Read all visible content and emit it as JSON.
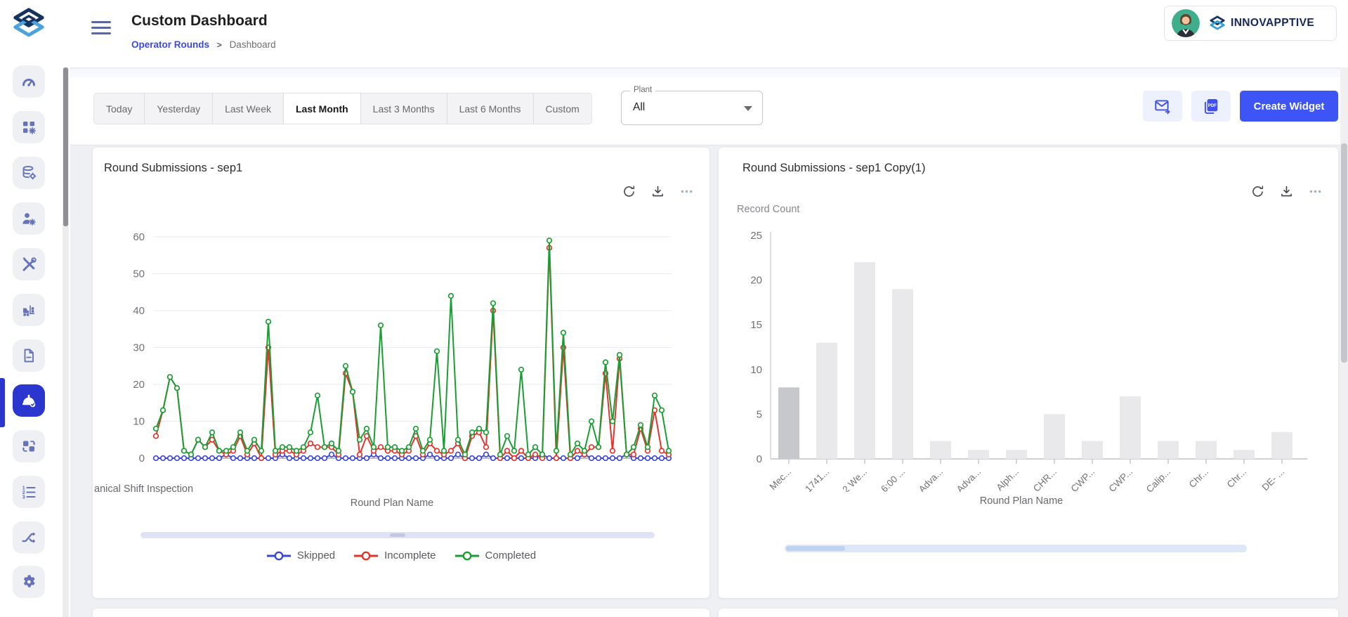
{
  "header": {
    "title": "Custom Dashboard",
    "breadcrumb": {
      "parent": "Operator Rounds",
      "separator": ">",
      "current": "Dashboard"
    },
    "brand": "INNOVAPPTIVE"
  },
  "sidebar": {
    "items": [
      {
        "name": "dashboard-gauge",
        "icon": "gauge",
        "active": false
      },
      {
        "name": "applications",
        "icon": "apps",
        "active": false
      },
      {
        "name": "data-settings",
        "icon": "database",
        "active": false
      },
      {
        "name": "user-management",
        "icon": "user",
        "active": false
      },
      {
        "name": "tools",
        "icon": "tools",
        "active": false
      },
      {
        "name": "logistics-forklift",
        "icon": "forklift",
        "active": false
      },
      {
        "name": "documents",
        "icon": "document",
        "active": false
      },
      {
        "name": "operator-rounds",
        "icon": "helmet",
        "active": true
      },
      {
        "name": "transfers",
        "icon": "swap",
        "active": false
      },
      {
        "name": "ordered-list",
        "icon": "list",
        "active": false
      },
      {
        "name": "workflows",
        "icon": "shuffle",
        "active": false
      },
      {
        "name": "settings",
        "icon": "gear",
        "active": false
      }
    ]
  },
  "filters": {
    "ranges": [
      "Today",
      "Yesterday",
      "Last Week",
      "Last Month",
      "Last 3 Months",
      "Last 6 Months",
      "Custom"
    ],
    "selected_range": "Last Month",
    "plant_label": "Plant",
    "plant_value": "All",
    "create_widget_label": "Create Widget"
  },
  "widgets": [
    {
      "title": "Round Submissions - sep1",
      "actions": [
        "refresh",
        "download",
        "more"
      ]
    },
    {
      "title": "Round Submissions - sep1 Copy(1)",
      "actions": [
        "refresh",
        "download",
        "more"
      ]
    }
  ],
  "chart_data": [
    {
      "type": "line",
      "title": "Round Submissions - sep1",
      "xlabel": "Round Plan Name",
      "ylabel": "",
      "ylim": [
        0,
        60
      ],
      "yticks": [
        0,
        10,
        20,
        30,
        40,
        50,
        60
      ],
      "grid": true,
      "legend_position": "bottom",
      "x_tick_visible": "anical Shift Inspection",
      "series": [
        {
          "name": "Skipped",
          "color": "#3b46d8",
          "values": [
            0,
            0,
            0,
            0,
            0,
            0,
            0,
            0,
            0,
            0,
            1,
            0,
            0,
            0,
            0,
            0,
            0,
            0,
            1,
            0,
            0,
            0,
            0,
            0,
            0,
            1,
            0,
            0,
            0,
            0,
            0,
            1,
            0,
            0,
            0,
            0,
            0,
            0,
            0,
            1,
            0,
            0,
            0,
            1,
            0,
            0,
            0,
            1,
            0,
            0,
            0,
            0,
            0,
            0,
            0,
            1,
            0,
            0,
            0,
            0,
            0,
            1,
            0,
            0,
            0,
            0,
            0,
            1,
            0,
            0,
            0,
            0,
            0,
            0
          ]
        },
        {
          "name": "Incomplete",
          "color": "#e3332b",
          "values": [
            6,
            13,
            22,
            19,
            2,
            1,
            5,
            3,
            5,
            2,
            1,
            2,
            6,
            1,
            4,
            0,
            30,
            1,
            2,
            2,
            1,
            2,
            4,
            3,
            3,
            3,
            1,
            23,
            18,
            1,
            6,
            2,
            3,
            2,
            2,
            1,
            2,
            6,
            1,
            4,
            2,
            1,
            2,
            4,
            0,
            6,
            7,
            3,
            40,
            0,
            2,
            0,
            2,
            0,
            1,
            0,
            57,
            0,
            30,
            0,
            2,
            1,
            3,
            3,
            23,
            2,
            27,
            1,
            1,
            8,
            2,
            13,
            2,
            1
          ]
        },
        {
          "name": "Completed",
          "color": "#1a9e33",
          "values": [
            8,
            13,
            22,
            19,
            2,
            1,
            5,
            3,
            7,
            2,
            2,
            3,
            7,
            2,
            5,
            2,
            37,
            2,
            3,
            3,
            2,
            3,
            7,
            17,
            3,
            4,
            2,
            25,
            18,
            5,
            8,
            3,
            36,
            3,
            3,
            2,
            3,
            8,
            2,
            5,
            29,
            2,
            44,
            5,
            1,
            7,
            8,
            7,
            42,
            1,
            6,
            2,
            24,
            1,
            3,
            1,
            59,
            2,
            34,
            1,
            4,
            2,
            10,
            3,
            26,
            10,
            28,
            1,
            3,
            9,
            3,
            17,
            13,
            2
          ]
        }
      ]
    },
    {
      "type": "bar",
      "title": "Round Submissions - sep1 Copy(1)",
      "xlabel": "Round Plan Name",
      "ylabel": "Record Count",
      "ylim": [
        0,
        25
      ],
      "yticks": [
        0,
        5,
        10,
        15,
        20,
        25
      ],
      "grid": false,
      "categories": [
        "Mec...",
        "1741...",
        "2 We...",
        "6:00 ...",
        "Adva...",
        "Adva...",
        "Alph...",
        "CHR...",
        "CWP...",
        "CWP...",
        "Calip...",
        "Chr...",
        "Chr...",
        "DE- ..."
      ],
      "values": [
        8,
        13,
        22,
        19,
        2,
        1,
        1,
        5,
        2,
        7,
        2,
        2,
        1,
        3
      ],
      "bar_color": "#e9e9eb",
      "highlight_color": "#c7c8cb",
      "highlighted_index": 0
    }
  ]
}
